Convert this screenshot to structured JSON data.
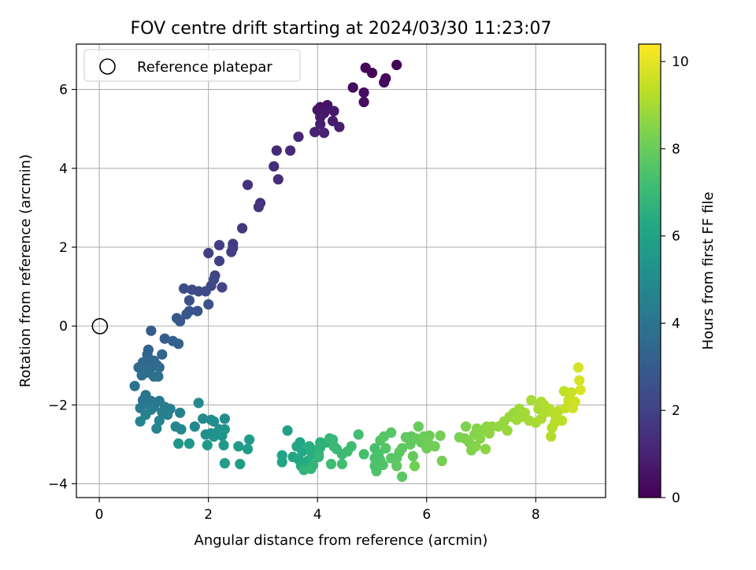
{
  "chart_data": {
    "type": "scatter",
    "title": "FOV centre drift starting at 2024/03/30 11:23:07",
    "xlabel": "Angular distance from reference (arcmin)",
    "ylabel": "Rotation from reference (arcmin)",
    "xlim": [
      -0.42,
      9.28
    ],
    "ylim": [
      -4.35,
      7.15
    ],
    "xticks": [
      0,
      2,
      4,
      6,
      8
    ],
    "yticks": [
      -4,
      -2,
      0,
      2,
      4,
      6
    ],
    "xtick_labels": [
      "0",
      "2",
      "4",
      "6",
      "8"
    ],
    "ytick_labels": [
      "−4",
      "−2",
      "0",
      "2",
      "4",
      "6"
    ],
    "grid": true,
    "colormap": "viridis",
    "colorbar": {
      "label": "Hours from first FF file",
      "range": [
        0,
        10.4
      ],
      "ticks": [
        0,
        2,
        4,
        6,
        8,
        10
      ],
      "tick_labels": [
        "0",
        "2",
        "4",
        "6",
        "8",
        "10"
      ]
    },
    "legend": {
      "position": "top-left",
      "entries": [
        "Reference platepar"
      ]
    },
    "reference_point": {
      "x": 0,
      "y": 0
    },
    "points": [
      [
        5.45,
        6.62,
        0.05
      ],
      [
        4.88,
        6.55,
        0.1
      ],
      [
        5.0,
        6.42,
        0.15
      ],
      [
        5.25,
        6.28,
        0.2
      ],
      [
        5.22,
        6.18,
        0.25
      ],
      [
        4.65,
        6.05,
        0.3
      ],
      [
        4.85,
        5.92,
        0.35
      ],
      [
        4.85,
        5.68,
        0.4
      ],
      [
        4.05,
        5.55,
        0.5
      ],
      [
        4.18,
        5.6,
        0.55
      ],
      [
        4.0,
        5.48,
        0.6
      ],
      [
        4.12,
        5.4,
        0.65
      ],
      [
        4.3,
        5.45,
        0.7
      ],
      [
        4.05,
        5.3,
        0.75
      ],
      [
        4.28,
        5.2,
        0.8
      ],
      [
        4.4,
        5.05,
        0.85
      ],
      [
        4.05,
        5.12,
        0.9
      ],
      [
        3.95,
        4.92,
        0.95
      ],
      [
        4.12,
        4.9,
        1.0
      ],
      [
        3.65,
        4.8,
        1.1
      ],
      [
        3.25,
        4.45,
        1.2
      ],
      [
        3.5,
        4.45,
        1.25
      ],
      [
        3.2,
        4.05,
        1.3
      ],
      [
        3.28,
        3.72,
        1.35
      ],
      [
        2.72,
        3.58,
        1.45
      ],
      [
        2.95,
        3.12,
        1.5
      ],
      [
        2.92,
        3.02,
        1.55
      ],
      [
        2.62,
        2.48,
        1.65
      ],
      [
        2.45,
        2.08,
        1.75
      ],
      [
        2.45,
        1.98,
        1.8
      ],
      [
        2.2,
        2.05,
        1.85
      ],
      [
        2.42,
        1.88,
        1.85
      ],
      [
        2.0,
        1.85,
        1.9
      ],
      [
        2.2,
        1.65,
        1.95
      ],
      [
        2.12,
        1.28,
        2.05
      ],
      [
        2.25,
        0.98,
        2.15
      ],
      [
        2.05,
        1.02,
        2.2
      ],
      [
        2.1,
        1.18,
        2.25
      ],
      [
        1.95,
        0.88,
        2.3
      ],
      [
        1.82,
        0.88,
        2.35
      ],
      [
        1.7,
        0.92,
        2.4
      ],
      [
        1.55,
        0.95,
        2.45
      ],
      [
        1.65,
        0.65,
        2.55
      ],
      [
        2.0,
        0.55,
        2.6
      ],
      [
        1.8,
        0.38,
        2.65
      ],
      [
        1.65,
        0.38,
        2.7
      ],
      [
        1.6,
        0.3,
        2.8
      ],
      [
        1.48,
        0.12,
        2.85
      ],
      [
        1.42,
        0.2,
        2.9
      ],
      [
        0.95,
        -0.12,
        3.0
      ],
      [
        1.2,
        -0.32,
        3.1
      ],
      [
        1.35,
        -0.38,
        3.15
      ],
      [
        1.45,
        -0.45,
        3.2
      ],
      [
        0.9,
        -0.6,
        3.25
      ],
      [
        0.88,
        -0.72,
        3.3
      ],
      [
        1.15,
        -0.72,
        3.35
      ],
      [
        0.92,
        -0.85,
        3.4
      ],
      [
        0.8,
        -0.92,
        3.45
      ],
      [
        1.0,
        -0.88,
        3.5
      ],
      [
        1.05,
        -0.98,
        3.55
      ],
      [
        0.72,
        -1.05,
        3.6
      ],
      [
        0.95,
        -1.05,
        3.62
      ],
      [
        1.1,
        -1.05,
        3.65
      ],
      [
        0.82,
        -1.15,
        3.7
      ],
      [
        0.9,
        -1.18,
        3.72
      ],
      [
        0.78,
        -1.25,
        3.75
      ],
      [
        1.0,
        -1.28,
        3.8
      ],
      [
        1.08,
        -1.28,
        3.82
      ],
      [
        0.65,
        -1.52,
        3.9
      ],
      [
        0.85,
        -1.75,
        3.95
      ],
      [
        0.8,
        -1.88,
        4.0
      ],
      [
        0.95,
        -1.9,
        4.05
      ],
      [
        0.88,
        -1.98,
        4.1
      ],
      [
        1.1,
        -1.9,
        4.15
      ],
      [
        0.75,
        -2.08,
        4.2
      ],
      [
        1.0,
        -2.05,
        4.25
      ],
      [
        1.2,
        -2.05,
        4.3
      ],
      [
        0.95,
        -2.12,
        4.35
      ],
      [
        1.15,
        -2.18,
        4.4
      ],
      [
        1.3,
        -2.1,
        4.45
      ],
      [
        0.85,
        -2.25,
        4.5
      ],
      [
        1.25,
        -2.25,
        4.52
      ],
      [
        1.48,
        -2.2,
        4.55
      ],
      [
        0.75,
        -2.42,
        4.6
      ],
      [
        1.1,
        -2.4,
        4.62
      ],
      [
        1.4,
        -2.55,
        4.65
      ],
      [
        1.05,
        -2.6,
        4.7
      ],
      [
        1.5,
        -2.62,
        4.75
      ],
      [
        1.75,
        -2.55,
        4.8
      ],
      [
        1.82,
        -1.95,
        4.85
      ],
      [
        1.9,
        -2.35,
        4.9
      ],
      [
        2.05,
        -2.38,
        4.95
      ],
      [
        2.1,
        -2.42,
        5.0
      ],
      [
        2.3,
        -2.35,
        5.05
      ],
      [
        1.95,
        -2.75,
        5.1
      ],
      [
        2.05,
        -2.72,
        5.15
      ],
      [
        2.2,
        -2.62,
        5.2
      ],
      [
        2.3,
        -2.62,
        5.25
      ],
      [
        2.1,
        -2.8,
        5.3
      ],
      [
        2.25,
        -2.78,
        5.35
      ],
      [
        1.45,
        -2.98,
        5.4
      ],
      [
        1.65,
        -2.98,
        5.45
      ],
      [
        1.98,
        -3.02,
        5.5
      ],
      [
        2.28,
        -3.02,
        5.55
      ],
      [
        2.55,
        -3.05,
        5.6
      ],
      [
        2.75,
        -2.88,
        5.65
      ],
      [
        2.72,
        -3.12,
        5.7
      ],
      [
        2.3,
        -3.48,
        5.75
      ],
      [
        2.58,
        -3.5,
        5.8
      ],
      [
        3.45,
        -2.65,
        5.9
      ],
      [
        3.35,
        -3.28,
        6.0
      ],
      [
        3.35,
        -3.45,
        6.05
      ],
      [
        3.55,
        -3.32,
        6.1
      ],
      [
        3.62,
        -3.05,
        6.15
      ],
      [
        3.68,
        -2.95,
        6.2
      ],
      [
        3.72,
        -3.18,
        6.25
      ],
      [
        3.65,
        -3.38,
        6.3
      ],
      [
        3.7,
        -3.55,
        6.35
      ],
      [
        3.82,
        -3.42,
        6.4
      ],
      [
        3.9,
        -3.25,
        6.45
      ],
      [
        3.85,
        -3.05,
        6.5
      ],
      [
        3.95,
        -3.15,
        6.55
      ],
      [
        4.02,
        -3.25,
        6.6
      ],
      [
        4.05,
        -2.95,
        6.62
      ],
      [
        4.18,
        -2.95,
        6.65
      ],
      [
        4.05,
        -3.08,
        6.7
      ],
      [
        3.92,
        -3.52,
        6.75
      ],
      [
        3.75,
        -3.65,
        6.8
      ],
      [
        3.88,
        -3.62,
        6.82
      ],
      [
        4.02,
        -3.32,
        6.85
      ],
      [
        4.22,
        -2.85,
        6.9
      ],
      [
        4.28,
        -2.88,
        6.92
      ],
      [
        4.3,
        -3.05,
        6.95
      ],
      [
        4.35,
        -3.12,
        7.0
      ],
      [
        4.45,
        -3.25,
        7.05
      ],
      [
        4.55,
        -3.18,
        7.1
      ],
      [
        4.62,
        -3.05,
        7.12
      ],
      [
        4.25,
        -3.5,
        7.15
      ],
      [
        4.45,
        -3.5,
        7.2
      ],
      [
        4.75,
        -2.75,
        7.25
      ],
      [
        4.85,
        -3.25,
        7.3
      ],
      [
        5.05,
        -3.1,
        7.35
      ],
      [
        5.05,
        -3.35,
        7.38
      ],
      [
        5.12,
        -3.25,
        7.4
      ],
      [
        5.15,
        -3.4,
        7.42
      ],
      [
        5.05,
        -3.55,
        7.45
      ],
      [
        5.08,
        -3.68,
        7.48
      ],
      [
        5.2,
        -3.52,
        7.5
      ],
      [
        5.15,
        -2.9,
        7.55
      ],
      [
        5.25,
        -3.1,
        7.6
      ],
      [
        5.35,
        -2.7,
        7.62
      ],
      [
        5.22,
        -2.8,
        7.65
      ],
      [
        5.35,
        -3.35,
        7.68
      ],
      [
        5.45,
        -3.35,
        7.7
      ],
      [
        5.5,
        -3.2,
        7.72
      ],
      [
        5.55,
        -3.82,
        7.75
      ],
      [
        5.45,
        -3.55,
        7.78
      ],
      [
        5.55,
        -3.1,
        7.8
      ],
      [
        5.62,
        -2.82,
        7.82
      ],
      [
        5.72,
        -2.8,
        7.85
      ],
      [
        5.7,
        -3.0,
        7.88
      ],
      [
        5.8,
        -2.85,
        7.9
      ],
      [
        5.75,
        -3.3,
        7.92
      ],
      [
        5.85,
        -2.55,
        7.95
      ],
      [
        5.9,
        -2.95,
        8.0
      ],
      [
        5.95,
        -2.8,
        8.02
      ],
      [
        6.05,
        -2.78,
        8.05
      ],
      [
        6.0,
        -3.1,
        8.08
      ],
      [
        6.02,
        -2.92,
        8.1
      ],
      [
        5.78,
        -3.55,
        8.12
      ],
      [
        6.15,
        -3.05,
        8.15
      ],
      [
        6.25,
        -2.78,
        8.2
      ],
      [
        6.28,
        -3.42,
        8.25
      ],
      [
        6.6,
        -2.82,
        8.3
      ],
      [
        6.7,
        -2.85,
        8.35
      ],
      [
        6.72,
        -2.55,
        8.38
      ],
      [
        6.78,
        -2.95,
        8.4
      ],
      [
        6.82,
        -3.15,
        8.42
      ],
      [
        6.88,
        -2.75,
        8.45
      ],
      [
        6.9,
        -3.05,
        8.48
      ],
      [
        6.92,
        -2.6,
        8.5
      ],
      [
        6.98,
        -2.85,
        8.52
      ],
      [
        7.0,
        -2.65,
        8.55
      ],
      [
        7.08,
        -3.12,
        8.58
      ],
      [
        7.1,
        -2.55,
        8.6
      ],
      [
        7.15,
        -2.72,
        8.62
      ],
      [
        7.2,
        -2.55,
        8.65
      ],
      [
        7.32,
        -2.55,
        8.7
      ],
      [
        7.42,
        -2.42,
        8.75
      ],
      [
        7.48,
        -2.65,
        8.78
      ],
      [
        7.52,
        -2.3,
        8.8
      ],
      [
        7.6,
        -2.2,
        8.85
      ],
      [
        7.65,
        -2.38,
        8.88
      ],
      [
        7.7,
        -2.1,
        8.9
      ],
      [
        7.75,
        -2.3,
        8.92
      ],
      [
        7.8,
        -2.2,
        8.95
      ],
      [
        7.88,
        -2.4,
        8.98
      ],
      [
        7.92,
        -1.88,
        9.0
      ],
      [
        8.0,
        -2.45,
        9.02
      ],
      [
        8.05,
        -2.1,
        9.05
      ],
      [
        8.1,
        -1.92,
        9.08
      ],
      [
        8.1,
        -2.35,
        9.1
      ],
      [
        8.15,
        -2.0,
        9.12
      ],
      [
        8.2,
        -2.18,
        9.15
      ],
      [
        8.25,
        -2.1,
        9.18
      ],
      [
        8.28,
        -2.8,
        9.2
      ],
      [
        8.3,
        -2.58,
        9.22
      ],
      [
        8.35,
        -2.45,
        9.25
      ],
      [
        8.35,
        -2.25,
        9.28
      ],
      [
        8.42,
        -2.15,
        9.3
      ],
      [
        8.48,
        -2.4,
        9.35
      ],
      [
        8.52,
        -1.65,
        9.4
      ],
      [
        8.55,
        -2.08,
        9.45
      ],
      [
        8.6,
        -1.88,
        9.5
      ],
      [
        8.65,
        -1.68,
        9.55
      ],
      [
        8.68,
        -2.08,
        9.6
      ],
      [
        8.72,
        -1.92,
        9.65
      ],
      [
        8.78,
        -1.05,
        9.75
      ],
      [
        8.8,
        -1.38,
        9.8
      ],
      [
        8.82,
        -1.62,
        9.85
      ]
    ]
  }
}
